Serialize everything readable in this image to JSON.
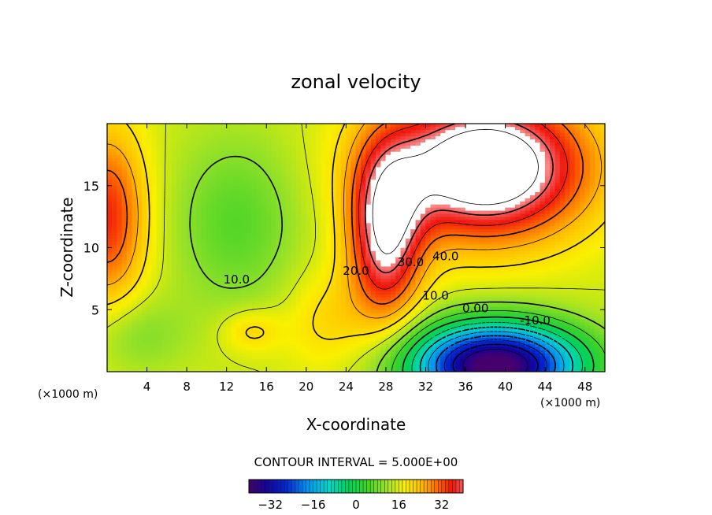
{
  "chart_data": {
    "type": "heatmap",
    "title": "zonal velocity",
    "xlabel": "X-coordinate",
    "ylabel": "Z-coordinate",
    "x_unit_note": "(×1000 m)",
    "x_unit_note_right": "(×1000 m)",
    "xlim": [
      0,
      50
    ],
    "ylim": [
      0,
      20
    ],
    "x_ticks": [
      4,
      8,
      12,
      16,
      20,
      24,
      28,
      32,
      36,
      40,
      44,
      48
    ],
    "y_ticks": [
      5,
      10,
      15
    ],
    "contour_interval_text": "CONTOUR INTERVAL = 5.000E+00",
    "contour_labels": [
      {
        "text": "10.0",
        "x": 13.0,
        "y": 7.1
      },
      {
        "text": "20.0",
        "x": 25.0,
        "y": 7.8
      },
      {
        "text": "30.0",
        "x": 30.5,
        "y": 8.5
      },
      {
        "text": "40.0",
        "x": 34.0,
        "y": 9.0
      },
      {
        "text": "10.0",
        "x": 33.0,
        "y": 5.8
      },
      {
        "text": "0.00",
        "x": 37.0,
        "y": 4.8
      },
      {
        "text": "-10.0",
        "x": 43.0,
        "y": 3.8
      }
    ],
    "colorbar": {
      "min": -40,
      "max": 40,
      "ticks": [
        -32,
        -16,
        0,
        16,
        32
      ]
    },
    "features": [
      {
        "kind": "jet_max",
        "x": 38,
        "z": 16,
        "value": 55
      },
      {
        "kind": "jet_min",
        "x": 39,
        "z": 1,
        "value": -38
      },
      {
        "kind": "local_max",
        "x": 0,
        "z": 12.5,
        "value": 34
      },
      {
        "kind": "local_max",
        "x": 14.5,
        "z": 3.5,
        "value": 20
      },
      {
        "kind": "local_min",
        "x": 13,
        "z": 12,
        "value": 6
      }
    ],
    "white_region_above": 42
  }
}
